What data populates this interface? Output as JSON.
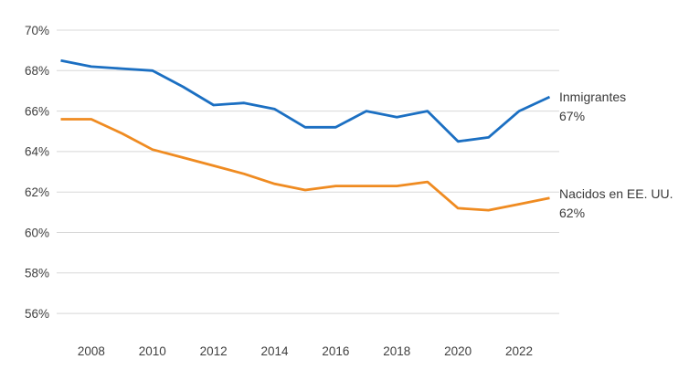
{
  "chart_data": {
    "type": "line",
    "x": [
      2007,
      2008,
      2009,
      2010,
      2011,
      2012,
      2013,
      2014,
      2015,
      2016,
      2017,
      2018,
      2019,
      2020,
      2021,
      2022,
      2023
    ],
    "series": [
      {
        "name": "Inmigrantes",
        "color": "#1b6fc2",
        "values": [
          68.5,
          68.2,
          68.1,
          68.0,
          67.2,
          66.3,
          66.4,
          66.1,
          65.2,
          65.2,
          66.0,
          65.7,
          66.0,
          64.5,
          64.7,
          66.0,
          66.7
        ],
        "end_label": "Inmigrantes",
        "end_value": "67%"
      },
      {
        "name": "Nacidos en EE. UU.",
        "color": "#ef8b21",
        "values": [
          65.6,
          65.6,
          64.9,
          64.1,
          63.7,
          63.3,
          62.9,
          62.4,
          62.1,
          62.3,
          62.3,
          62.3,
          62.5,
          61.2,
          61.1,
          61.4,
          61.7
        ],
        "end_label": "Nacidos en EE. UU.",
        "end_value": "62%"
      }
    ],
    "title": "",
    "xlabel": "",
    "ylabel": "",
    "ylim": [
      56,
      70
    ],
    "yticks": [
      70,
      68,
      66,
      64,
      62,
      60,
      58,
      56
    ],
    "ytick_labels": [
      "70%",
      "68%",
      "66%",
      "64%",
      "62%",
      "60%",
      "58%",
      "56%"
    ],
    "xticks": [
      2008,
      2010,
      2012,
      2014,
      2016,
      2018,
      2020,
      2022
    ],
    "xtick_labels": [
      "2008",
      "2010",
      "2012",
      "2014",
      "2016",
      "2018",
      "2020",
      "2022"
    ],
    "grid": "horizontal",
    "gridline_color": "#d8d8d8",
    "axis_text_color": "#3f3f3f",
    "legend_position": "right-end-labels"
  },
  "end_labels": {
    "inmigrantes": {
      "name": "Inmigrantes",
      "value": "67%"
    },
    "nacidos": {
      "name": "Nacidos en EE. UU.",
      "value": "62%"
    }
  }
}
